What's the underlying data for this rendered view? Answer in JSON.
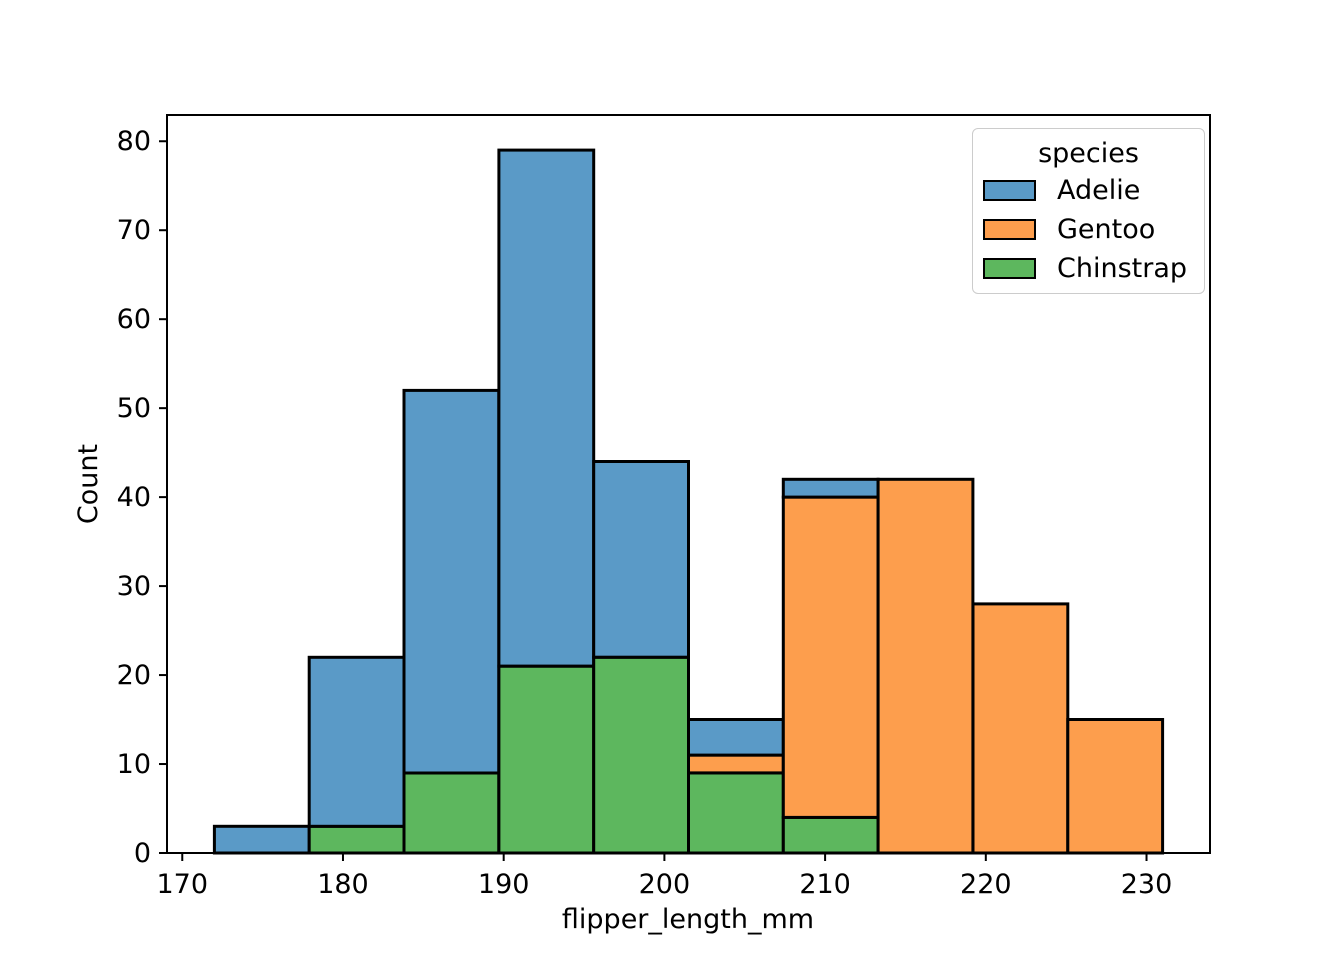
{
  "figure": {
    "background": "#ffffff"
  },
  "legend": {
    "title": "species"
  },
  "chart_data": {
    "type": "bar",
    "subtype": "stacked-histogram",
    "title": "",
    "xlabel": "flipper_length_mm",
    "ylabel": "Count",
    "xlim": [
      169.05,
      233.95
    ],
    "ylim": [
      0,
      82.95
    ],
    "xticks": [
      170,
      180,
      190,
      200,
      210,
      220,
      230
    ],
    "yticks": [
      0,
      10,
      20,
      30,
      40,
      50,
      60,
      70,
      80
    ],
    "grid": false,
    "legend_position": "upper right",
    "bin_edges": [
      172.0,
      177.9,
      183.8,
      189.7,
      195.6,
      201.5,
      207.4,
      213.3,
      219.2,
      225.1,
      231.0
    ],
    "bin_totals": [
      3,
      22,
      52,
      79,
      44,
      15,
      42,
      42,
      28,
      15
    ],
    "stack_order_bottom_to_top": [
      "Chinstrap",
      "Gentoo",
      "Adelie"
    ],
    "series": [
      {
        "name": "Adelie",
        "color": "#5A9AC7",
        "counts": [
          3,
          19,
          43,
          58,
          22,
          4,
          2,
          0,
          0,
          0
        ]
      },
      {
        "name": "Gentoo",
        "color": "#FD9E4D",
        "counts": [
          0,
          0,
          0,
          0,
          0,
          2,
          36,
          42,
          28,
          15
        ]
      },
      {
        "name": "Chinstrap",
        "color": "#5DB75E",
        "counts": [
          0,
          3,
          9,
          21,
          22,
          9,
          4,
          0,
          0,
          0
        ]
      }
    ],
    "bar_edge_color": "#000000",
    "axis_color": "#000000",
    "tick_label_color": "#000000"
  }
}
